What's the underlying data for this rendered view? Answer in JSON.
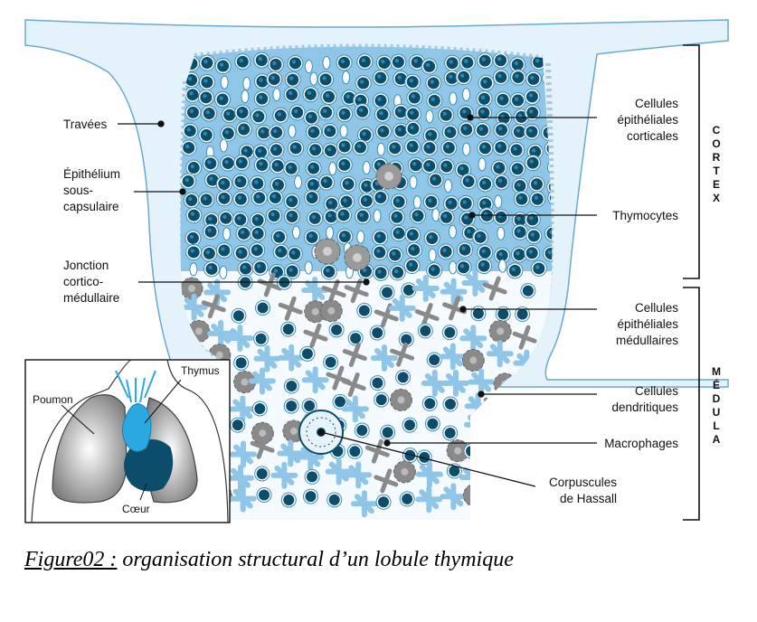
{
  "labels": {
    "travees": "Travées",
    "epithelium_1": "Épithélium",
    "epithelium_2": "sous-",
    "epithelium_3": "capsulaire",
    "jonction_1": "Jonction",
    "jonction_2": "cortico-",
    "jonction_3": "médullaire",
    "epi_cort_1": "Cellules",
    "epi_cort_2": "épithéliales",
    "epi_cort_3": "corticales",
    "thymocytes": "Thymocytes",
    "epi_med_1": "Cellules",
    "epi_med_2": "épithéliales",
    "epi_med_3": "médullaires",
    "dend_1": "Cellules",
    "dend_2": "dendritiques",
    "macrophages": "Macrophages",
    "hassall_1": "Corpuscules",
    "hassall_2": "de Hassall"
  },
  "regions": {
    "cortex": [
      "C",
      "O",
      "R",
      "T",
      "E",
      "X"
    ],
    "medula": [
      "M",
      "É",
      "D",
      "U",
      "L",
      "A"
    ]
  },
  "inset": {
    "thymus": "Thymus",
    "poumon": "Poumon",
    "coeur": "Cœur"
  },
  "caption": {
    "prefix": "Figure02 :",
    "text": " organisation structural d’un lobule thymique"
  },
  "colors": {
    "stroma": "#8fc6e8",
    "capsule": "#e4f3fb",
    "thymocyte": "#0b4d6b",
    "macrophage": "#8a8a8a",
    "thymus_inset": "#29a9e0",
    "heart_inset": "#0b4d6b"
  }
}
